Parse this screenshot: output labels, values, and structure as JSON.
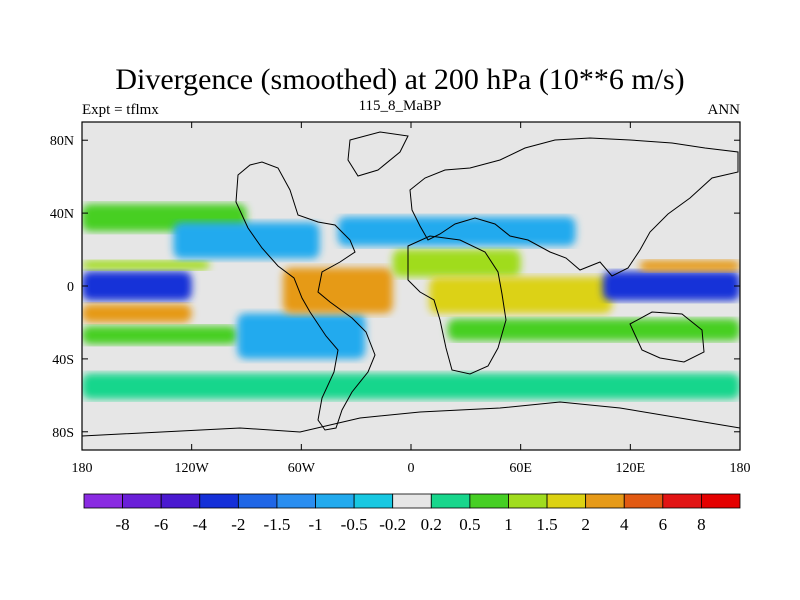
{
  "title": "Divergence (smoothed) at 200 hPa (10**6 m/s)",
  "subtitle_left": "Expt = tflmx",
  "subtitle_center": "115_8_MaBP",
  "subtitle_right": "ANN",
  "chart_data": {
    "type": "heatmap",
    "title": "Divergence (smoothed) at 200 hPa (10**6 m/s)",
    "units": "10**6 m/s",
    "x_axis": {
      "range": [
        -180,
        180
      ],
      "ticks": [
        -180,
        -120,
        -60,
        0,
        60,
        120,
        180
      ],
      "tick_labels": [
        "180",
        "120W",
        "60W",
        "0",
        "60E",
        "120E",
        "180"
      ]
    },
    "y_axis": {
      "range": [
        -90,
        90
      ],
      "ticks": [
        80,
        40,
        0,
        -40,
        -80
      ],
      "tick_labels": [
        "80N",
        "40N",
        "0",
        "40S",
        "80S"
      ]
    },
    "colorbar": {
      "levels": [
        -8,
        -6,
        -4,
        -2,
        -1.5,
        -1,
        -0.5,
        -0.2,
        0.2,
        0.5,
        1,
        1.5,
        2,
        4,
        6,
        8
      ],
      "level_labels": [
        "-8",
        "-6",
        "-4",
        "-2",
        "-1.5",
        "-1",
        "-0.5",
        "-0.2",
        "0.2",
        "0.5",
        "1",
        "1.5",
        "2",
        "4",
        "6",
        "8"
      ],
      "colors": [
        "#8a2be2",
        "#6a1fd8",
        "#4a19d0",
        "#1530d8",
        "#1f66e6",
        "#2a8ef0",
        "#22aaee",
        "#18c8e2",
        "#e6e6e6",
        "#18d68c",
        "#46cf24",
        "#a0dc1e",
        "#dcd212",
        "#e69a18",
        "#e25a12",
        "#e21414",
        "#e40000"
      ]
    },
    "regions": [
      {
        "lon": [
          -180,
          -90
        ],
        "lat": [
          30,
          45
        ],
        "value": 0.6
      },
      {
        "lon": [
          -180,
          -95
        ],
        "lat": [
          -32,
          -22
        ],
        "value": 0.6
      },
      {
        "lon": [
          -180,
          -120
        ],
        "lat": [
          -8,
          8
        ],
        "value": -2.5
      },
      {
        "lon": [
          -180,
          -110
        ],
        "lat": [
          9,
          14
        ],
        "value": 1.2
      },
      {
        "lon": [
          -180,
          -120
        ],
        "lat": [
          -20,
          -10
        ],
        "value": 2.0
      },
      {
        "lon": [
          -130,
          -50
        ],
        "lat": [
          15,
          35
        ],
        "value": -0.8
      },
      {
        "lon": [
          -95,
          -25
        ],
        "lat": [
          -40,
          -15
        ],
        "value": -0.9
      },
      {
        "lon": [
          -70,
          -10
        ],
        "lat": [
          -15,
          10
        ],
        "value": 2.5
      },
      {
        "lon": [
          -10,
          60
        ],
        "lat": [
          5,
          20
        ],
        "value": 1.2
      },
      {
        "lon": [
          10,
          110
        ],
        "lat": [
          -15,
          5
        ],
        "value": 1.5
      },
      {
        "lon": [
          -40,
          90
        ],
        "lat": [
          22,
          38
        ],
        "value": -1.0
      },
      {
        "lon": [
          105,
          180
        ],
        "lat": [
          -8,
          8
        ],
        "value": -2.2
      },
      {
        "lon": [
          125,
          180
        ],
        "lat": [
          8,
          14
        ],
        "value": 2.0
      },
      {
        "lon": [
          20,
          180
        ],
        "lat": [
          -30,
          -18
        ],
        "value": 0.6
      },
      {
        "lon": [
          -180,
          180
        ],
        "lat": [
          -62,
          -48
        ],
        "value": 0.4
      }
    ]
  }
}
